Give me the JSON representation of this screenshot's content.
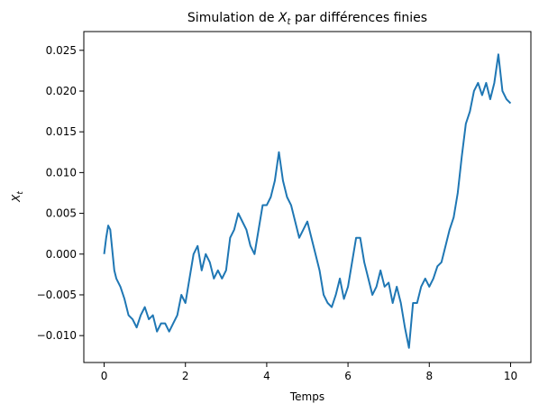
{
  "chart_data": {
    "type": "line",
    "title": {
      "before": "Simulation de ",
      "var": "X",
      "sub": "t",
      "after": " par différences finies"
    },
    "xlabel": "Temps",
    "ylabel": {
      "var": "X",
      "sub": "t"
    },
    "color": "#1f77b4",
    "x": [
      0.0,
      0.05,
      0.1,
      0.15,
      0.2,
      0.25,
      0.3,
      0.4,
      0.5,
      0.6,
      0.7,
      0.8,
      0.9,
      1.0,
      1.1,
      1.2,
      1.3,
      1.4,
      1.5,
      1.6,
      1.7,
      1.8,
      1.9,
      2.0,
      2.1,
      2.2,
      2.3,
      2.4,
      2.5,
      2.6,
      2.7,
      2.8,
      2.9,
      3.0,
      3.1,
      3.2,
      3.3,
      3.4,
      3.5,
      3.6,
      3.7,
      3.8,
      3.9,
      4.0,
      4.1,
      4.2,
      4.3,
      4.4,
      4.5,
      4.6,
      4.7,
      4.8,
      4.9,
      5.0,
      5.1,
      5.2,
      5.3,
      5.4,
      5.5,
      5.6,
      5.7,
      5.8,
      5.9,
      6.0,
      6.1,
      6.2,
      6.3,
      6.4,
      6.5,
      6.6,
      6.7,
      6.8,
      6.9,
      7.0,
      7.1,
      7.2,
      7.3,
      7.4,
      7.5,
      7.6,
      7.7,
      7.8,
      7.9,
      8.0,
      8.1,
      8.2,
      8.3,
      8.4,
      8.5,
      8.6,
      8.7,
      8.8,
      8.9,
      9.0,
      9.1,
      9.2,
      9.3,
      9.4,
      9.5,
      9.6,
      9.7,
      9.8,
      9.9,
      10.0
    ],
    "values": [
      0.0,
      0.002,
      0.0035,
      0.003,
      0.0005,
      -0.002,
      -0.003,
      -0.004,
      -0.0055,
      -0.0075,
      -0.008,
      -0.009,
      -0.0075,
      -0.0065,
      -0.008,
      -0.0075,
      -0.0095,
      -0.0085,
      -0.0085,
      -0.0095,
      -0.0085,
      -0.0075,
      -0.005,
      -0.006,
      -0.003,
      0.0,
      0.001,
      -0.002,
      0.0,
      -0.001,
      -0.003,
      -0.002,
      -0.003,
      -0.002,
      0.002,
      0.003,
      0.005,
      0.004,
      0.003,
      0.001,
      0.0,
      0.003,
      0.006,
      0.006,
      0.007,
      0.009,
      0.0125,
      0.009,
      0.007,
      0.006,
      0.004,
      0.002,
      0.003,
      0.004,
      0.002,
      0.0,
      -0.002,
      -0.005,
      -0.006,
      -0.0065,
      -0.005,
      -0.003,
      -0.0055,
      -0.004,
      -0.001,
      0.002,
      0.002,
      -0.001,
      -0.003,
      -0.005,
      -0.004,
      -0.002,
      -0.004,
      -0.0035,
      -0.006,
      -0.004,
      -0.006,
      -0.009,
      -0.0115,
      -0.006,
      -0.006,
      -0.004,
      -0.003,
      -0.004,
      -0.003,
      -0.0015,
      -0.001,
      0.001,
      0.003,
      0.0045,
      0.0075,
      0.012,
      0.016,
      0.0175,
      0.02,
      0.021,
      0.0195,
      0.021,
      0.019,
      0.021,
      0.0245,
      0.02,
      0.019,
      0.0185
    ],
    "xlim": [
      -0.5,
      10.5
    ],
    "ylim": [
      -0.0133,
      0.0273
    ],
    "xticks": [
      0,
      2,
      4,
      6,
      8,
      10
    ],
    "yticks": [
      {
        "value": -0.01,
        "label": "−0.010"
      },
      {
        "value": -0.005,
        "label": "−0.005"
      },
      {
        "value": 0,
        "label": "0.000"
      },
      {
        "value": 0.005,
        "label": "0.005"
      },
      {
        "value": 0.01,
        "label": "0.010"
      },
      {
        "value": 0.015,
        "label": "0.015"
      },
      {
        "value": 0.02,
        "label": "0.020"
      },
      {
        "value": 0.025,
        "label": "0.025"
      }
    ],
    "grid": false
  }
}
